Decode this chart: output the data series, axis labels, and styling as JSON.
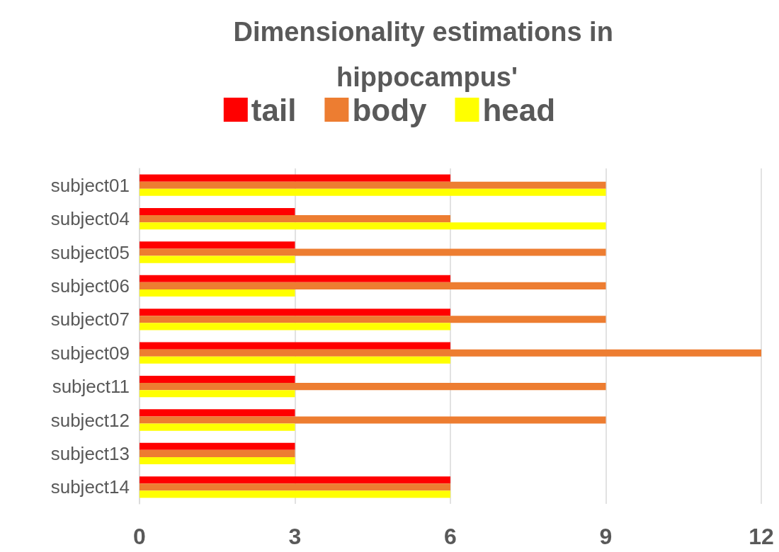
{
  "chart_data": {
    "type": "bar",
    "orientation": "horizontal",
    "title": "Dimensionality estimations in hippocampus'",
    "categories": [
      "subject01",
      "subject04",
      "subject05",
      "subject06",
      "subject07",
      "subject09",
      "subject11",
      "subject12",
      "subject13",
      "subject14"
    ],
    "series": [
      {
        "name": "tail",
        "color": "#ff0000",
        "values": [
          6,
          3,
          3,
          6,
          6,
          6,
          3,
          3,
          3,
          6
        ]
      },
      {
        "name": "body",
        "color": "#ed7d31",
        "values": [
          9,
          6,
          9,
          9,
          9,
          12,
          9,
          9,
          3,
          6
        ]
      },
      {
        "name": "head",
        "color": "#ffff00",
        "values": [
          9,
          9,
          3,
          3,
          6,
          6,
          3,
          3,
          3,
          6
        ]
      }
    ],
    "xlim": [
      0,
      12
    ],
    "xticks": [
      0,
      3,
      6,
      9,
      12
    ],
    "grid": "x",
    "legend": "top"
  }
}
